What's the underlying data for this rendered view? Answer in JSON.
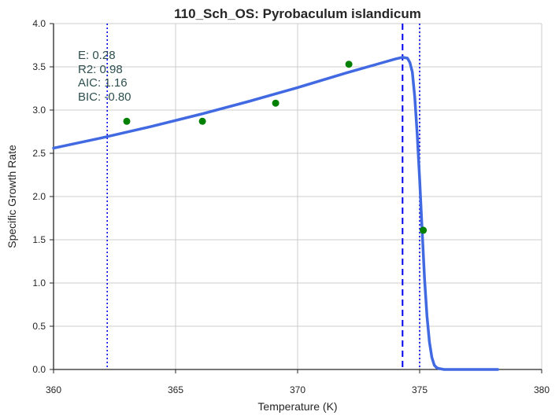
{
  "chart_data": {
    "type": "scatter",
    "title": "110_Sch_OS: Pyrobaculum islandicum",
    "xlabel": "Temperature (K)",
    "ylabel": "Specific Growth Rate",
    "xlim": [
      360,
      380
    ],
    "ylim": [
      0.0,
      4.0
    ],
    "x_ticks": [
      "360",
      "365",
      "370",
      "375",
      "380"
    ],
    "y_ticks": [
      "0.0",
      "0.5",
      "1.0",
      "1.5",
      "2.0",
      "2.5",
      "3.0",
      "3.5",
      "4.0"
    ],
    "grid": true,
    "annotations": [
      "E:  0.28",
      "R2:  0.98",
      "AIC: 1.16",
      "BIC: -0.80"
    ],
    "points": [
      {
        "x": 363.0,
        "y": 2.87
      },
      {
        "x": 366.1,
        "y": 2.87
      },
      {
        "x": 369.1,
        "y": 3.08
      },
      {
        "x": 372.1,
        "y": 3.53
      },
      {
        "x": 375.15,
        "y": 1.61
      }
    ],
    "fit_curve": {
      "x": [
        360.0,
        362.0,
        364.0,
        366.0,
        368.0,
        370.0,
        372.0,
        373.5,
        374.0,
        374.3,
        374.5,
        374.6,
        374.7,
        374.8,
        374.9,
        375.0,
        375.1,
        375.2,
        375.3,
        375.4,
        375.5,
        375.6,
        375.7,
        375.8,
        376.0,
        376.5,
        377.0,
        378.0,
        378.2
      ],
      "y": [
        2.56,
        2.68,
        2.81,
        2.95,
        3.1,
        3.26,
        3.43,
        3.55,
        3.59,
        3.61,
        3.6,
        3.55,
        3.44,
        3.15,
        2.72,
        2.2,
        1.62,
        1.05,
        0.62,
        0.32,
        0.14,
        0.05,
        0.02,
        0.01,
        0.0,
        0.0,
        0.0,
        0.0,
        0.0
      ]
    },
    "vlines": [
      {
        "x": 362.2,
        "style": "dotted"
      },
      {
        "x": 374.3,
        "style": "dashed"
      },
      {
        "x": 375.0,
        "style": "dotted"
      }
    ],
    "colors": {
      "points": "#008000",
      "fit_curve": "#4169e1",
      "vlines": "#0000ee",
      "annotation_text": "#2f4f4f",
      "grid": "#cccccc",
      "axis": "#262626"
    }
  }
}
